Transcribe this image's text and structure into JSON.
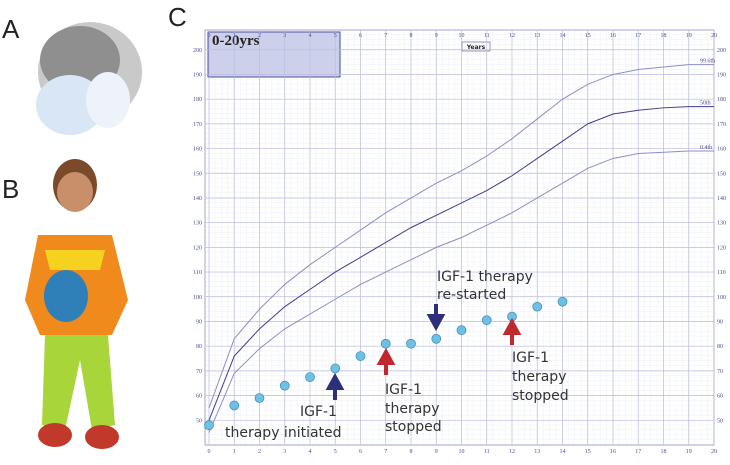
{
  "panels": {
    "a": "A",
    "b": "B",
    "c": "C"
  },
  "chart_data": {
    "type": "scatter",
    "inset_title": "0-20yrs",
    "inset_label": "Years",
    "x": [
      0,
      1,
      2,
      3,
      4,
      5,
      6,
      7,
      8,
      9,
      10,
      11,
      12,
      13,
      14
    ],
    "values": [
      48,
      56,
      59,
      64,
      67.5,
      71,
      76,
      81,
      81,
      83,
      86.5,
      90.5,
      92,
      96,
      98
    ],
    "color": "#6ec1e4",
    "xlim": [
      0,
      20
    ],
    "xticks": [
      0,
      1,
      2,
      3,
      4,
      5,
      6,
      7,
      8,
      9,
      10,
      11,
      12,
      13,
      14,
      15,
      16,
      17,
      18,
      19,
      20
    ],
    "ylim": [
      40,
      208
    ],
    "yticks": [
      50,
      60,
      70,
      80,
      90,
      100,
      110,
      120,
      130,
      140,
      150,
      160,
      170,
      180,
      190,
      200
    ],
    "grid": true,
    "curves": [
      {
        "name": "99.6th",
        "color": "#8a8fc4",
        "x": [
          0,
          1,
          2,
          3,
          4,
          5,
          6,
          7,
          8,
          9,
          10,
          11,
          12,
          13,
          14,
          15,
          16,
          17,
          18,
          19,
          20
        ],
        "values": [
          55,
          83,
          95,
          105,
          113,
          120,
          127,
          134,
          140,
          146,
          151,
          157,
          164,
          172,
          180,
          186,
          190,
          192,
          193,
          194,
          194
        ]
      },
      {
        "name": "50th",
        "color": "#3b3f8f",
        "x": [
          0,
          1,
          2,
          3,
          4,
          5,
          6,
          7,
          8,
          9,
          10,
          11,
          12,
          13,
          14,
          15,
          16,
          17,
          18,
          19,
          20
        ],
        "values": [
          50,
          76,
          87,
          96,
          103,
          110,
          116,
          122,
          128,
          133,
          138,
          143,
          149,
          156,
          163,
          170,
          174,
          175.5,
          176.5,
          177,
          177
        ]
      },
      {
        "name": "0.4th",
        "color": "#8a8fc4",
        "x": [
          0,
          1,
          2,
          3,
          4,
          5,
          6,
          7,
          8,
          9,
          10,
          11,
          12,
          13,
          14,
          15,
          16,
          17,
          18,
          19,
          20
        ],
        "values": [
          45,
          69,
          79,
          87,
          93,
          99,
          105,
          110,
          115,
          120,
          124,
          129,
          134,
          140,
          146,
          152,
          156,
          158,
          158.5,
          159,
          159
        ]
      }
    ],
    "annotations": [
      {
        "lines": [
          "IGF-1",
          "therapy initiated"
        ]
      },
      {
        "lines": [
          "IGF-1",
          "therapy",
          "stopped"
        ]
      },
      {
        "lines": [
          "IGF-1 therapy",
          "re-started"
        ]
      },
      {
        "lines": [
          "IGF-1",
          "therapy",
          "stopped"
        ]
      }
    ]
  }
}
